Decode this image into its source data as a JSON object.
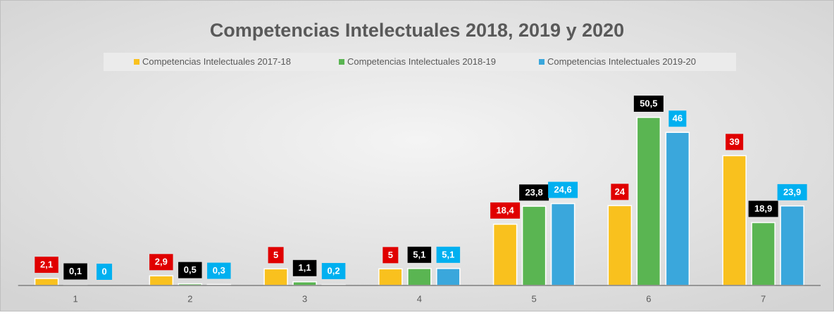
{
  "chart_data": {
    "type": "bar",
    "title": "Competencias Intelectuales 2018, 2019 y 2020",
    "categories": [
      "1",
      "2",
      "3",
      "4",
      "5",
      "6",
      "7"
    ],
    "series": [
      {
        "name": "Competencias Intelectuales 2017-18",
        "color": "#f9c11e",
        "label_color": "#e00000",
        "values": [
          2.1,
          2.9,
          5,
          5,
          18.4,
          24,
          39
        ],
        "value_labels": [
          "2,1",
          "2,9",
          "5",
          "5",
          "18,4",
          "24",
          "39"
        ]
      },
      {
        "name": "Competencias Intelectuales 2018-19",
        "color": "#5ab552",
        "label_color": "#000000",
        "values": [
          0.1,
          0.5,
          1.1,
          5.1,
          23.8,
          50.5,
          18.9
        ],
        "value_labels": [
          "0,1",
          "0,5",
          "1,1",
          "5,1",
          "23,8",
          "50,5",
          "18,9"
        ]
      },
      {
        "name": "Competencias Intelectuales 2019-20",
        "color": "#3aa7dc",
        "label_color": "#00b0f0",
        "values": [
          0,
          0.3,
          0.2,
          5.1,
          24.6,
          46,
          23.9
        ],
        "value_labels": [
          "0",
          "0,3",
          "0,2",
          "5,1",
          "24,6",
          "46",
          "23,9"
        ]
      }
    ],
    "ylim": [
      0,
      60
    ],
    "legend": "top"
  }
}
